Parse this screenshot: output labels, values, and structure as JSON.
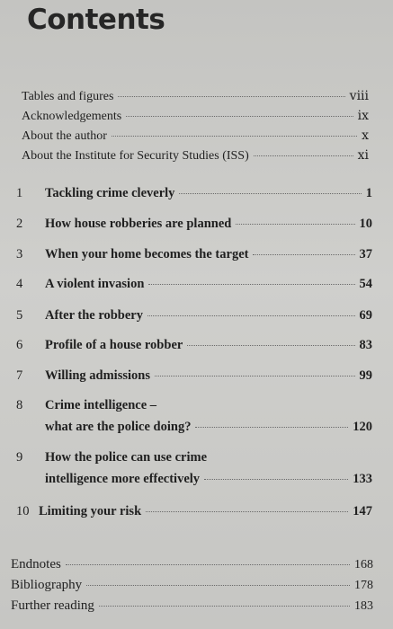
{
  "title": "Contents",
  "front_matter": [
    {
      "label": "Tables and figures",
      "page": "viii"
    },
    {
      "label": "Acknowledgements",
      "page": "ix"
    },
    {
      "label": "About the author",
      "page": "x"
    },
    {
      "label": "About the Institute for Security Studies (ISS)",
      "page": "xi"
    }
  ],
  "chapters": [
    {
      "num": "1",
      "title": "Tackling crime cleverly",
      "page": "1"
    },
    {
      "num": "2",
      "title": "How house robberies are planned",
      "page": "10"
    },
    {
      "num": "3",
      "title": "When your home becomes the target",
      "page": "37"
    },
    {
      "num": "4",
      "title": "A violent invasion",
      "page": "54"
    },
    {
      "num": "5",
      "title": "After the robbery",
      "page": "69"
    },
    {
      "num": "6",
      "title": "Profile of a house robber",
      "page": "83"
    },
    {
      "num": "7",
      "title": "Willing admissions",
      "page": "99"
    },
    {
      "num": "8",
      "title_line1": "Crime intelligence –",
      "title_line2": "what are the police doing?",
      "page": "120"
    },
    {
      "num": "9",
      "title_line1": "How the police can use crime",
      "title_line2": "intelligence more effectively",
      "page": "133"
    },
    {
      "num": "10",
      "title": "Limiting your risk",
      "page": "147"
    }
  ],
  "back_matter": [
    {
      "label": "Endnotes",
      "page": "168"
    },
    {
      "label": "Bibliography",
      "page": "178"
    },
    {
      "label": "Further reading",
      "page": "183"
    }
  ]
}
